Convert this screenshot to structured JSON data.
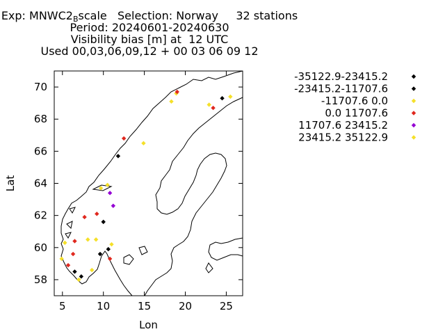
{
  "title": {
    "line1_prefix": "Exp: MNWC2",
    "line1_sub": "B",
    "line1_suffix": "scale   Selection: Norway     32 stations",
    "line2": "Period: 20240601-20240630",
    "line3": "Visibility bias [m] at  12 UTC",
    "line4": "Used 00,03,06,09,12 + 00 03 06 09 12"
  },
  "chart_data": {
    "type": "scatter",
    "xlabel": "Lon",
    "ylabel": "Lat",
    "xlim": [
      4,
      27
    ],
    "ylim": [
      57,
      71
    ],
    "xticks": [
      5,
      10,
      15,
      20,
      25
    ],
    "yticks": [
      58,
      60,
      62,
      64,
      66,
      68,
      70
    ],
    "grid": false,
    "legend_position": "right",
    "series": [
      {
        "name": "-35122.9-23415.2",
        "color": "#000000",
        "points": []
      },
      {
        "name": "-23415.2-11707.6",
        "color": "#000000",
        "points": [
          [
            24.5,
            69.3
          ],
          [
            11.8,
            65.7
          ],
          [
            10.0,
            61.6
          ],
          [
            9.6,
            59.6
          ],
          [
            10.6,
            59.9
          ],
          [
            6.5,
            58.5
          ],
          [
            7.3,
            58.2
          ]
        ]
      },
      {
        "name": "-11707.6 0.0",
        "color": "#f5e02a",
        "points": [
          [
            18.9,
            69.6
          ],
          [
            25.5,
            69.4
          ],
          [
            22.9,
            68.9
          ],
          [
            14.9,
            66.5
          ],
          [
            9.7,
            63.7
          ],
          [
            8.1,
            60.5
          ],
          [
            9.1,
            60.5
          ],
          [
            11.0,
            60.2
          ],
          [
            5.3,
            60.3
          ],
          [
            4.9,
            59.3
          ],
          [
            8.6,
            58.6
          ],
          [
            7.0,
            58.0
          ]
        ]
      },
      {
        "name": "0.0 11707.6",
        "color": "#e0281e",
        "points": [
          [
            19.0,
            69.7
          ],
          [
            23.4,
            68.7
          ],
          [
            12.5,
            66.8
          ],
          [
            7.7,
            61.9
          ],
          [
            9.2,
            62.1
          ],
          [
            6.5,
            60.4
          ],
          [
            6.3,
            59.6
          ],
          [
            10.8,
            59.3
          ],
          [
            5.7,
            58.9
          ]
        ]
      },
      {
        "name": "11707.6 23415.2",
        "color": "#9400d3",
        "points": [
          [
            10.8,
            63.4
          ],
          [
            11.2,
            62.6
          ]
        ]
      },
      {
        "name": "23415.2 35122.9",
        "color": "#f5e02a",
        "points": [
          [
            10.5,
            63.9
          ],
          [
            18.3,
            69.1
          ]
        ]
      }
    ]
  }
}
